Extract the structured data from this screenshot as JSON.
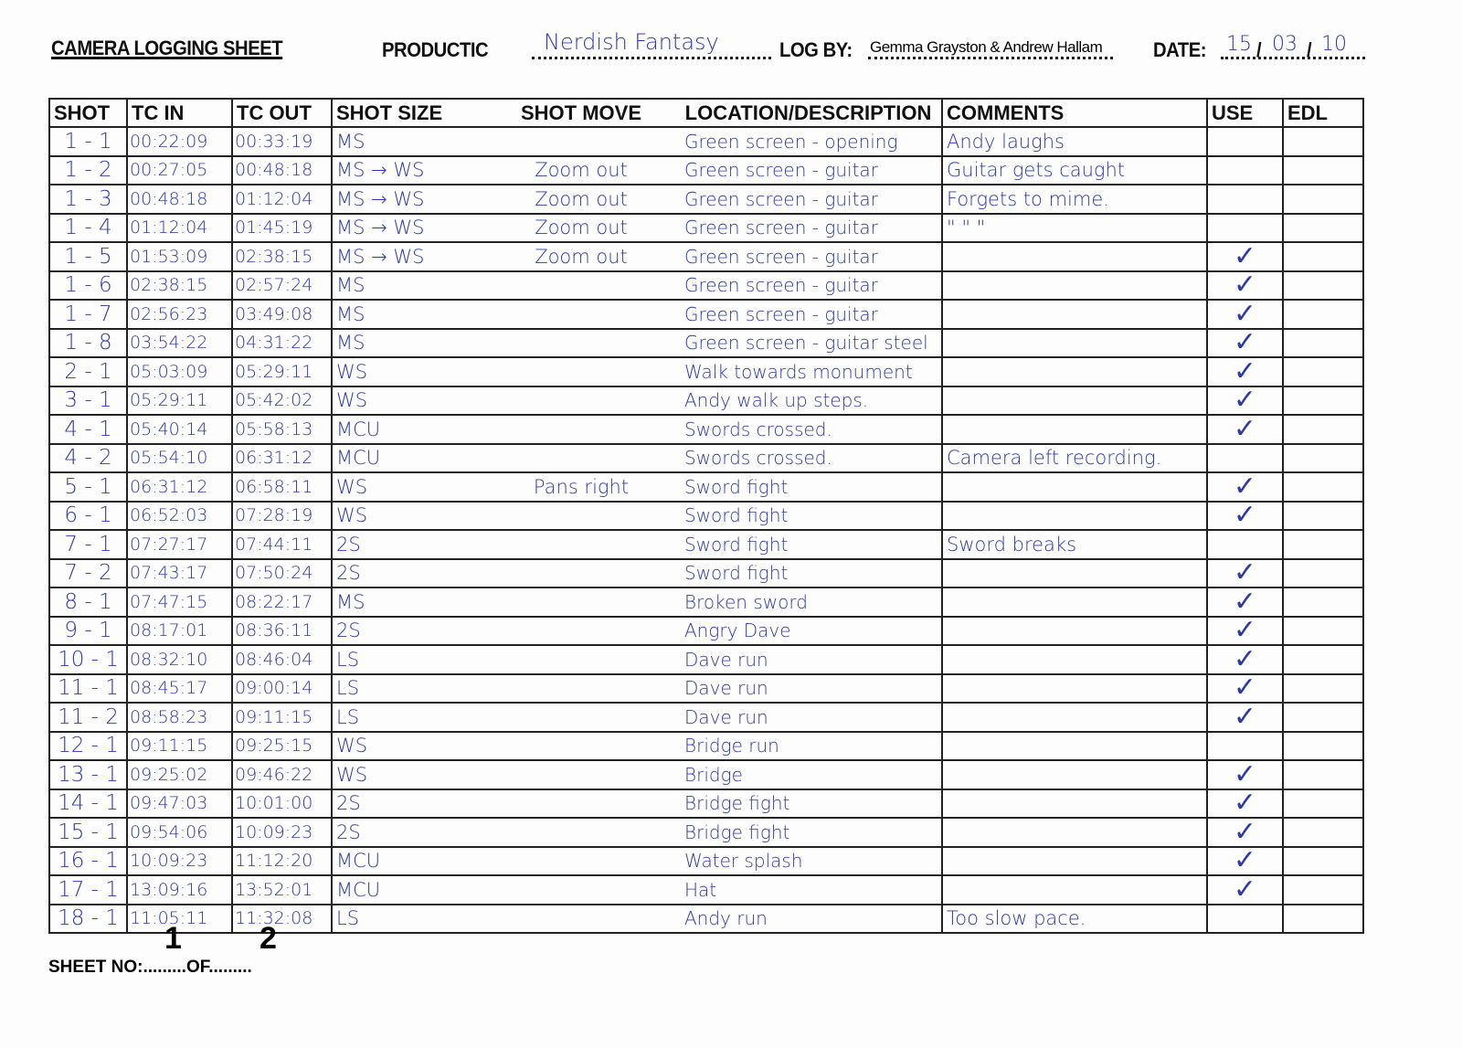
{
  "header": {
    "title": "CAMERA LOGGING SHEET",
    "production_label": "PRODUCTIC",
    "production_value": "Nerdish Fantasy",
    "log_by_label": "LOG BY:",
    "log_by_value": "Gemma Grayston & Andrew Hallam",
    "date_label": "DATE:",
    "date_day": "15",
    "date_month": "03",
    "date_year": "10"
  },
  "columns": [
    "SHOT",
    "TC IN",
    "TC OUT",
    "SHOT SIZE",
    "SHOT MOVE",
    "LOCATION/DESCRIPTION",
    "COMMENTS",
    "USE",
    "EDL"
  ],
  "rows": [
    {
      "shot": "1 - 1",
      "tc_in": "00:22:09",
      "tc_out": "00:33:19",
      "size": "MS",
      "move": "",
      "desc": "Green screen - opening",
      "comments": "Andy laughs",
      "use": false
    },
    {
      "shot": "1 - 2",
      "tc_in": "00:27:05",
      "tc_out": "00:48:18",
      "size": "MS → WS",
      "move": "Zoom out",
      "desc": "Green screen - guitar",
      "comments": "Guitar gets caught",
      "use": false
    },
    {
      "shot": "1 - 3",
      "tc_in": "00:48:18",
      "tc_out": "01:12:04",
      "size": "MS → WS",
      "move": "Zoom out",
      "desc": "Green screen - guitar",
      "comments": "Forgets to mime.",
      "use": false
    },
    {
      "shot": "1 - 4",
      "tc_in": "01:12:04",
      "tc_out": "01:45:19",
      "size": "MS → WS",
      "move": "Zoom out",
      "desc": "Green screen - guitar",
      "comments": "\"      \"      \"",
      "use": false
    },
    {
      "shot": "1 - 5",
      "tc_in": "01:53:09",
      "tc_out": "02:38:15",
      "size": "MS → WS",
      "move": "Zoom out",
      "desc": "Green screen - guitar",
      "comments": "",
      "use": true
    },
    {
      "shot": "1 - 6",
      "tc_in": "02:38:15",
      "tc_out": "02:57:24",
      "size": "MS",
      "move": "",
      "desc": "Green screen - guitar",
      "comments": "",
      "use": true
    },
    {
      "shot": "1 - 7",
      "tc_in": "02:56:23",
      "tc_out": "03:49:08",
      "size": "MS",
      "move": "",
      "desc": "Green screen - guitar",
      "comments": "",
      "use": true
    },
    {
      "shot": "1 - 8",
      "tc_in": "03:54:22",
      "tc_out": "04:31:22",
      "size": "MS",
      "move": "",
      "desc": "Green screen - guitar steel",
      "comments": "",
      "use": true
    },
    {
      "shot": "2 - 1",
      "tc_in": "05:03:09",
      "tc_out": "05:29:11",
      "size": "WS",
      "move": "",
      "desc": "Walk towards monument",
      "comments": "",
      "use": true
    },
    {
      "shot": "3 - 1",
      "tc_in": "05:29:11",
      "tc_out": "05:42:02",
      "size": "WS",
      "move": "",
      "desc": "Andy walk up steps.",
      "comments": "",
      "use": true
    },
    {
      "shot": "4 - 1",
      "tc_in": "05:40:14",
      "tc_out": "05:58:13",
      "size": "MCU",
      "move": "",
      "desc": "Swords crossed.",
      "comments": "",
      "use": true
    },
    {
      "shot": "4 - 2",
      "tc_in": "05:54:10",
      "tc_out": "06:31:12",
      "size": "MCU",
      "move": "",
      "desc": "Swords crossed.",
      "comments": "Camera left recording.",
      "use": false
    },
    {
      "shot": "5 - 1",
      "tc_in": "06:31:12",
      "tc_out": "06:58:11",
      "size": "WS",
      "move": "Pans right",
      "desc": "Sword fight",
      "comments": "",
      "use": true
    },
    {
      "shot": "6 - 1",
      "tc_in": "06:52:03",
      "tc_out": "07:28:19",
      "size": "WS",
      "move": "",
      "desc": "Sword fight",
      "comments": "",
      "use": true
    },
    {
      "shot": "7 - 1",
      "tc_in": "07:27:17",
      "tc_out": "07:44:11",
      "size": "2S",
      "move": "",
      "desc": "Sword fight",
      "comments": "Sword breaks",
      "use": false
    },
    {
      "shot": "7 - 2",
      "tc_in": "07:43:17",
      "tc_out": "07:50:24",
      "size": "2S",
      "move": "",
      "desc": "Sword fight",
      "comments": "",
      "use": true
    },
    {
      "shot": "8 - 1",
      "tc_in": "07:47:15",
      "tc_out": "08:22:17",
      "size": "MS",
      "move": "",
      "desc": "Broken sword",
      "comments": "",
      "use": true
    },
    {
      "shot": "9 - 1",
      "tc_in": "08:17:01",
      "tc_out": "08:36:11",
      "size": "2S",
      "move": "",
      "desc": "Angry Dave",
      "comments": "",
      "use": true
    },
    {
      "shot": "10 - 1",
      "tc_in": "08:32:10",
      "tc_out": "08:46:04",
      "size": "LS",
      "move": "",
      "desc": "Dave run",
      "comments": "",
      "use": true
    },
    {
      "shot": "11 - 1",
      "tc_in": "08:45:17",
      "tc_out": "09:00:14",
      "size": "LS",
      "move": "",
      "desc": "Dave run",
      "comments": "",
      "use": true
    },
    {
      "shot": "11 - 2",
      "tc_in": "08:58:23",
      "tc_out": "09:11:15",
      "size": "LS",
      "move": "",
      "desc": "Dave run",
      "comments": "",
      "use": true
    },
    {
      "shot": "12 - 1",
      "tc_in": "09:11:15",
      "tc_out": "09:25:15",
      "size": "WS",
      "move": "",
      "desc": "Bridge run",
      "comments": "",
      "use": false
    },
    {
      "shot": "13 - 1",
      "tc_in": "09:25:02",
      "tc_out": "09:46:22",
      "size": "WS",
      "move": "",
      "desc": "Bridge",
      "comments": "",
      "use": true
    },
    {
      "shot": "14 - 1",
      "tc_in": "09:47:03",
      "tc_out": "10:01:00",
      "size": "2S",
      "move": "",
      "desc": "Bridge fight",
      "comments": "",
      "use": true
    },
    {
      "shot": "15 - 1",
      "tc_in": "09:54:06",
      "tc_out": "10:09:23",
      "size": "2S",
      "move": "",
      "desc": "Bridge fight",
      "comments": "",
      "use": true
    },
    {
      "shot": "16 - 1",
      "tc_in": "10:09:23",
      "tc_out": "11:12:20",
      "size": "MCU",
      "move": "",
      "desc": "Water splash",
      "comments": "",
      "use": true
    },
    {
      "shot": "17 - 1",
      "tc_in": "13:09:16",
      "tc_out": "13:52:01",
      "size": "MCU",
      "move": "",
      "desc": "Hat",
      "comments": "",
      "use": true
    },
    {
      "shot": "18 - 1",
      "tc_in": "11:05:11",
      "tc_out": "11:32:08",
      "size": "LS",
      "move": "",
      "desc": "Andy run",
      "comments": "Too slow pace.",
      "use": false
    }
  ],
  "use_mark": "✓",
  "footer": {
    "sheet_label": "SHEET NO:",
    "sheet_no": "1",
    "of_label": "OF",
    "of_total": "2"
  },
  "colors": {
    "ink": "#2b3aa6",
    "print": "#111111"
  }
}
